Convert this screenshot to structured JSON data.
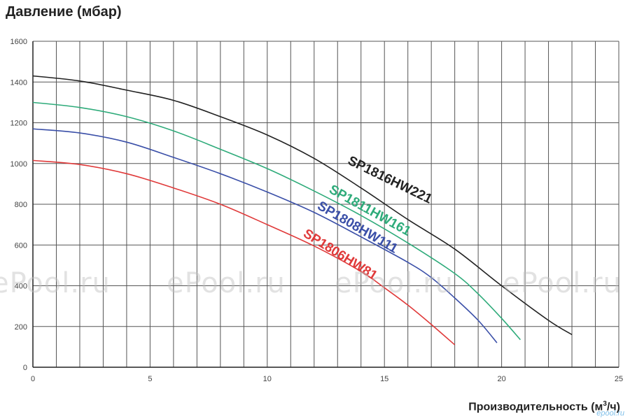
{
  "chart_data": {
    "type": "line",
    "ylabel": "Давление (мбар)",
    "xlabel": "Производительность (м",
    "xlabel_sup": "3",
    "xlabel_tail": "/ч)",
    "xlim": [
      0,
      25
    ],
    "ylim": [
      0,
      1600
    ],
    "x_ticks": [
      0,
      5,
      10,
      15,
      20,
      25
    ],
    "y_ticks": [
      0,
      200,
      400,
      600,
      800,
      1000,
      1200,
      1400,
      1600
    ],
    "grid": true,
    "series": [
      {
        "name": "SP1816HW221",
        "color": "#222222",
        "points": [
          [
            0,
            1430
          ],
          [
            2,
            1405
          ],
          [
            4,
            1360
          ],
          [
            6,
            1310
          ],
          [
            8,
            1230
          ],
          [
            10,
            1140
          ],
          [
            12,
            1025
          ],
          [
            14,
            880
          ],
          [
            16,
            725
          ],
          [
            18,
            580
          ],
          [
            20,
            400
          ],
          [
            22,
            230
          ],
          [
            23,
            160
          ]
        ]
      },
      {
        "name": "SP1811HW161",
        "color": "#2eab7a",
        "points": [
          [
            0,
            1300
          ],
          [
            2,
            1275
          ],
          [
            4,
            1230
          ],
          [
            6,
            1160
          ],
          [
            8,
            1070
          ],
          [
            10,
            975
          ],
          [
            12,
            865
          ],
          [
            14,
            745
          ],
          [
            16,
            610
          ],
          [
            18,
            460
          ],
          [
            19,
            360
          ],
          [
            20,
            240
          ],
          [
            20.8,
            135
          ]
        ]
      },
      {
        "name": "SP1808HW111",
        "color": "#3a4fa8",
        "points": [
          [
            0,
            1170
          ],
          [
            2,
            1150
          ],
          [
            4,
            1105
          ],
          [
            6,
            1030
          ],
          [
            8,
            950
          ],
          [
            10,
            860
          ],
          [
            12,
            760
          ],
          [
            14,
            640
          ],
          [
            16,
            515
          ],
          [
            17,
            440
          ],
          [
            18,
            340
          ],
          [
            19,
            230
          ],
          [
            19.8,
            120
          ]
        ]
      },
      {
        "name": "SP1806HW81",
        "color": "#e03a3a",
        "points": [
          [
            0,
            1015
          ],
          [
            2,
            995
          ],
          [
            4,
            950
          ],
          [
            6,
            880
          ],
          [
            8,
            800
          ],
          [
            10,
            700
          ],
          [
            12,
            595
          ],
          [
            14,
            470
          ],
          [
            15,
            390
          ],
          [
            16,
            305
          ],
          [
            17,
            210
          ],
          [
            18,
            110
          ]
        ]
      }
    ]
  },
  "watermarks": [
    "ePool.ru",
    "ePool.ru",
    "ePool.ru",
    "ePool.ru"
  ],
  "corner_logo": "epool.ru"
}
